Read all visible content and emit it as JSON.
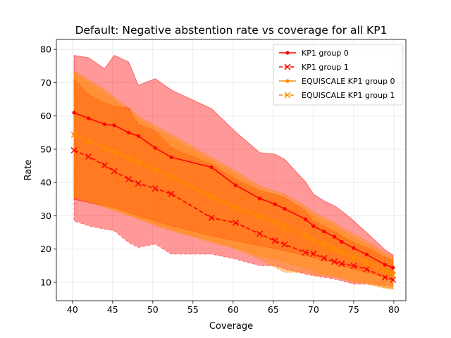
{
  "chart_data": {
    "type": "line",
    "title": "Default: Negative abstention rate vs coverage for all KP1",
    "xlabel": "Coverage",
    "ylabel": "Rate",
    "xlim": [
      38,
      81.5
    ],
    "ylim": [
      4.5,
      83
    ],
    "xticks": [
      40,
      45,
      50,
      55,
      60,
      65,
      70,
      75,
      80
    ],
    "yticks": [
      10,
      20,
      30,
      40,
      50,
      60,
      70,
      80
    ],
    "grid": true,
    "legend_position": "top-right",
    "series": [
      {
        "name": "KP1 group 0",
        "color": "#ff0000",
        "marker": "dot",
        "linestyle": "solid",
        "x": [
          40.2,
          42.0,
          44.0,
          45.2,
          47.0,
          48.2,
          50.3,
          52.3,
          57.3,
          60.3,
          63.3,
          65.2,
          66.4,
          69.0,
          70.0,
          71.3,
          72.6,
          73.5,
          75.0,
          76.6,
          78.9,
          79.9
        ],
        "y": [
          61.0,
          59.3,
          57.5,
          57.2,
          55.0,
          54.0,
          50.4,
          47.6,
          44.6,
          39.2,
          35.2,
          33.5,
          32.1,
          29.0,
          26.9,
          25.3,
          23.7,
          22.2,
          20.3,
          18.4,
          15.3,
          14.4
        ],
        "band_upper": [
          78.2,
          77.5,
          74.2,
          78.2,
          76.2,
          69.2,
          71.2,
          67.8,
          62.2,
          55.2,
          49.0,
          48.5,
          47.0,
          40.2,
          36.5,
          34.5,
          33.0,
          31.5,
          28.5,
          25.0,
          19.8,
          18.2
        ],
        "band_lower": [
          35.0,
          34.0,
          33.0,
          32.5,
          31.0,
          30.0,
          28.5,
          27.0,
          24.0,
          22.5,
          21.0,
          20.2,
          19.5,
          18.0,
          17.5,
          16.5,
          16.0,
          15.0,
          14.0,
          13.0,
          11.5,
          11.0
        ]
      },
      {
        "name": "KP1 group 1",
        "color": "#ff0000",
        "marker": "x",
        "linestyle": "dashed",
        "x": [
          40.2,
          42.0,
          44.0,
          45.2,
          47.0,
          48.2,
          50.3,
          52.3,
          57.3,
          60.3,
          63.3,
          65.2,
          66.4,
          69.0,
          70.0,
          71.3,
          72.6,
          73.5,
          75.0,
          76.6,
          78.9,
          79.9
        ],
        "y": [
          49.7,
          47.8,
          45.2,
          43.4,
          41.0,
          39.7,
          38.2,
          36.6,
          29.4,
          27.9,
          24.6,
          22.5,
          21.4,
          19.0,
          18.6,
          17.3,
          16.2,
          15.6,
          15.0,
          14.0,
          11.5,
          10.8
        ],
        "band_upper": [
          71.0,
          66.5,
          64.0,
          63.0,
          62.5,
          57.5,
          55.5,
          50.5,
          45.5,
          41.0,
          37.5,
          36.5,
          35.5,
          31.5,
          28.5,
          27.0,
          25.5,
          24.0,
          22.0,
          20.5,
          17.5,
          16.8
        ],
        "band_lower": [
          28.5,
          27.0,
          26.0,
          25.5,
          22.0,
          20.5,
          21.5,
          18.5,
          18.5,
          17.0,
          15.0,
          15.0,
          14.0,
          12.5,
          12.0,
          11.5,
          11.0,
          10.5,
          9.5,
          9.5,
          9.0,
          8.8
        ]
      },
      {
        "name": "EQUISCALE KP1 group 0",
        "color": "#ff8c00",
        "marker": "dot",
        "linestyle": "solid",
        "x": [
          40.2,
          42.0,
          44.0,
          45.2,
          47.0,
          48.2,
          50.3,
          52.3,
          57.3,
          60.3,
          63.3,
          65.2,
          66.4,
          69.0,
          70.0,
          71.3,
          72.6,
          73.5,
          75.0,
          76.6,
          78.9,
          79.9
        ],
        "y": [
          54.5,
          52.5,
          50.5,
          49.5,
          47.5,
          46.5,
          44.0,
          42.0,
          36.0,
          32.8,
          30.0,
          28.5,
          27.2,
          24.5,
          23.0,
          21.8,
          20.5,
          19.5,
          18.0,
          16.5,
          13.8,
          13.0
        ],
        "band_upper": [
          73.5,
          71.0,
          68.0,
          65.5,
          62.5,
          60.0,
          57.0,
          54.5,
          47.5,
          43.5,
          39.0,
          37.5,
          36.5,
          33.0,
          31.0,
          29.5,
          28.0,
          26.5,
          24.5,
          22.5,
          19.0,
          17.8
        ],
        "band_lower": [
          36.0,
          34.5,
          33.0,
          32.0,
          30.5,
          29.5,
          27.5,
          26.0,
          22.5,
          20.5,
          18.0,
          17.0,
          16.0,
          14.5,
          13.5,
          12.5,
          12.0,
          11.5,
          10.5,
          10.0,
          8.5,
          8.2
        ]
      },
      {
        "name": "EQUISCALE KP1 group 1",
        "color": "#ff8c00",
        "marker": "x",
        "linestyle": "dashed",
        "x": [
          40.2,
          42.0,
          44.0,
          45.2,
          47.0,
          48.2,
          50.3,
          52.3,
          57.3,
          60.3,
          63.3,
          65.2,
          66.4,
          69.0,
          70.0,
          71.3,
          72.6,
          73.5,
          75.0,
          76.6,
          78.9,
          79.9
        ],
        "y": [
          54.3,
          52.3,
          50.3,
          49.0,
          47.0,
          45.8,
          43.6,
          41.5,
          35.5,
          32.2,
          29.4,
          27.8,
          26.0,
          23.5,
          22.0,
          20.8,
          19.6,
          18.6,
          17.0,
          15.6,
          12.9,
          12.1
        ],
        "band_upper": [
          73.0,
          70.0,
          67.0,
          64.5,
          61.5,
          59.0,
          56.0,
          53.5,
          46.5,
          42.5,
          38.0,
          36.5,
          35.5,
          32.0,
          30.0,
          28.5,
          27.0,
          25.5,
          23.5,
          21.5,
          18.0,
          17.0
        ],
        "band_lower": [
          35.5,
          34.0,
          32.5,
          31.5,
          30.0,
          29.0,
          27.0,
          25.5,
          22.0,
          20.0,
          17.0,
          14.5,
          13.0,
          13.0,
          12.0,
          12.0,
          11.5,
          11.0,
          10.0,
          9.5,
          8.2,
          8.0
        ]
      }
    ]
  }
}
